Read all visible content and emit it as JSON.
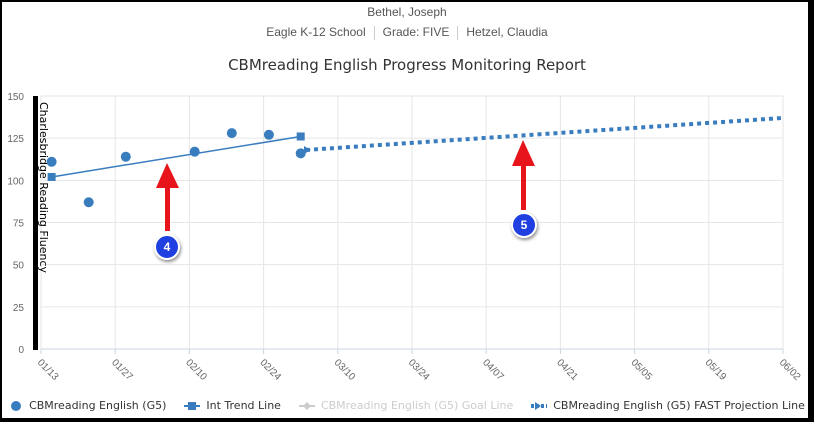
{
  "header": {
    "student": "Bethel, Joseph",
    "school": "Eagle K-12 School",
    "grade": "Grade: FIVE",
    "teacher": "Hetzel, Claudia"
  },
  "chart_data": {
    "type": "line",
    "title": "CBMreading English Progress Monitoring Report",
    "xlabel": "",
    "ylabel": "Charlesbridge Reading Fluency",
    "ylim": [
      0,
      150
    ],
    "yticks": [
      0,
      25,
      50,
      75,
      100,
      125,
      150
    ],
    "xticks": [
      "01/13",
      "01/27",
      "02/10",
      "02/24",
      "03/10",
      "03/24",
      "04/07",
      "04/21",
      "05/05",
      "05/19",
      "06/02"
    ],
    "grid": true,
    "legend_position": "bottom",
    "series": [
      {
        "name": "CBMreading English (G5)",
        "kind": "scatter",
        "color": "#3a7dbf",
        "points": [
          {
            "x": "01/15",
            "y": 111
          },
          {
            "x": "01/22",
            "y": 87
          },
          {
            "x": "01/29",
            "y": 114
          },
          {
            "x": "02/11",
            "y": 117
          },
          {
            "x": "02/18",
            "y": 128
          },
          {
            "x": "02/25",
            "y": 127
          },
          {
            "x": "03/03",
            "y": 116
          }
        ]
      },
      {
        "name": "Int Trend Line",
        "kind": "line",
        "color": "#3a7dbf",
        "points": [
          {
            "x": "01/15",
            "y": 102
          },
          {
            "x": "03/03",
            "y": 126
          }
        ]
      },
      {
        "name": "CBMreading English (G5) Goal Line",
        "kind": "line",
        "color": "#cccccc",
        "hidden": true,
        "points": []
      },
      {
        "name": "CBMreading English (G5) FAST Projection Line",
        "kind": "dotted-line",
        "color": "#3a7dbf",
        "points": [
          {
            "x": "03/04",
            "y": 118
          },
          {
            "x": "06/02",
            "y": 137
          }
        ]
      }
    ]
  },
  "annotations": [
    {
      "label": "4",
      "color": "#1f3fe0",
      "arrow_color": "#e8141b"
    },
    {
      "label": "5",
      "color": "#1f3fe0",
      "arrow_color": "#e8141b"
    }
  ]
}
